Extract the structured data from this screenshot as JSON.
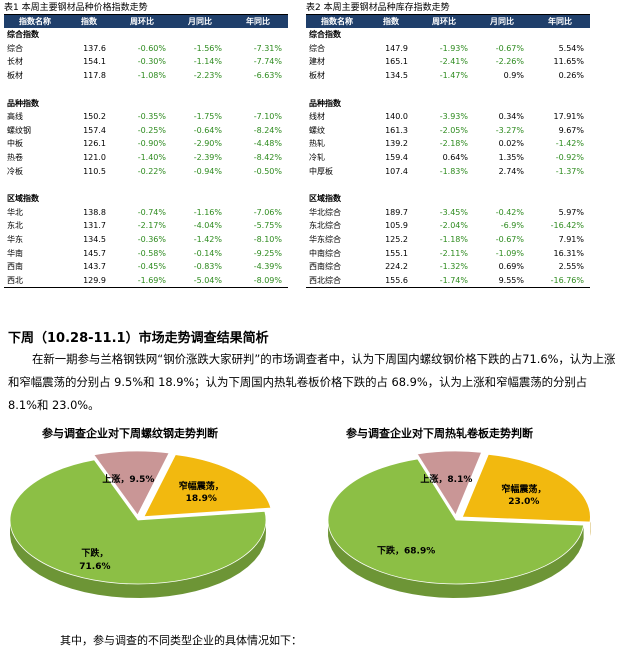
{
  "table1": {
    "title": "表1  本周主要钢材品种价格指数走势",
    "headers": [
      "指数名称",
      "指数",
      "周环比",
      "月同比",
      "年同比"
    ],
    "groups": [
      {
        "name": "综合指数",
        "rows": [
          [
            "综合",
            "137.6",
            "-0.60%",
            "-1.56%",
            "-7.31%"
          ],
          [
            "长材",
            "154.1",
            "-0.30%",
            "-1.14%",
            "-7.74%"
          ],
          [
            "板材",
            "117.8",
            "-1.08%",
            "-2.23%",
            "-6.63%"
          ]
        ]
      },
      {
        "name": "品种指数",
        "rows": [
          [
            "高线",
            "150.2",
            "-0.35%",
            "-1.75%",
            "-7.10%"
          ],
          [
            "螺纹钢",
            "157.4",
            "-0.25%",
            "-0.64%",
            "-8.24%"
          ],
          [
            "中板",
            "126.1",
            "-0.90%",
            "-2.90%",
            "-4.48%"
          ],
          [
            "热卷",
            "121.0",
            "-1.40%",
            "-2.39%",
            "-8.42%"
          ],
          [
            "冷板",
            "110.5",
            "-0.22%",
            "-0.94%",
            "-0.50%"
          ]
        ]
      },
      {
        "name": "区域指数",
        "rows": [
          [
            "华北",
            "138.8",
            "-0.74%",
            "-1.16%",
            "-7.06%"
          ],
          [
            "东北",
            "131.7",
            "-2.17%",
            "-4.04%",
            "-5.75%"
          ],
          [
            "华东",
            "134.5",
            "-0.36%",
            "-1.42%",
            "-8.10%"
          ],
          [
            "华南",
            "145.7",
            "-0.58%",
            "-0.14%",
            "-9.25%"
          ],
          [
            "西南",
            "143.7",
            "-0.45%",
            "-0.83%",
            "-4.39%"
          ],
          [
            "西北",
            "129.9",
            "-1.69%",
            "-5.04%",
            "-8.09%"
          ]
        ]
      }
    ]
  },
  "table2": {
    "title": "表2  本周主要钢材品种库存指数走势",
    "headers": [
      "指数名称",
      "指数",
      "周环比",
      "月同比",
      "年同比"
    ],
    "groups": [
      {
        "name": "综合指数",
        "rows": [
          [
            "综合",
            "147.9",
            "-1.93%",
            "-0.67%",
            "5.54%"
          ],
          [
            "建材",
            "165.1",
            "-2.41%",
            "-2.26%",
            "11.65%"
          ],
          [
            "板材",
            "134.5",
            "-1.47%",
            "0.9%",
            "0.26%"
          ]
        ]
      },
      {
        "name": "品种指数",
        "rows": [
          [
            "线材",
            "140.0",
            "-3.93%",
            "0.34%",
            "17.91%"
          ],
          [
            "螺纹",
            "161.3",
            "-2.05%",
            "-3.27%",
            "9.67%"
          ],
          [
            "热轧",
            "139.2",
            "-2.18%",
            "0.02%",
            "-1.42%"
          ],
          [
            "冷轧",
            "159.4",
            "0.64%",
            "1.35%",
            "-0.92%"
          ],
          [
            "中厚板",
            "107.4",
            "-1.83%",
            "2.74%",
            "-1.37%"
          ]
        ]
      },
      {
        "name": "区域指数",
        "rows": [
          [
            "华北综合",
            "189.7",
            "-3.45%",
            "-0.42%",
            "5.97%"
          ],
          [
            "东北综合",
            "105.9",
            "-2.04%",
            "-6.9%",
            "-16.42%"
          ],
          [
            "华东综合",
            "125.2",
            "-1.18%",
            "-0.67%",
            "7.91%"
          ],
          [
            "中南综合",
            "155.1",
            "-2.11%",
            "-1.09%",
            "16.31%"
          ],
          [
            "西南综合",
            "224.2",
            "-1.32%",
            "0.69%",
            "2.55%"
          ],
          [
            "西北综合",
            "155.6",
            "-1.74%",
            "9.55%",
            "-16.76%"
          ]
        ]
      }
    ]
  },
  "section": {
    "heading": "下周（10.28-11.1）市场走势调查结果简析",
    "paragraph": "在新一期参与兰格钢铁网“钢价涨跌大家研判”的市场调查者中，认为下周国内螺纹钢价格下跌的占71.6%，认为上涨和窄幅震荡的分别占 9.5%和 18.9%；认为下周国内热轧卷板价格下跌的占 68.9%，认为上涨和窄幅震荡的分别占 8.1%和 23.0%。",
    "footer": "其中，参与调查的不同类型企业的具体情况如下："
  },
  "colors": {
    "header_bg": "#1f3f6b",
    "negative": "#2e8b1f",
    "slice_fall": "#8cbf45",
    "slice_rise": "#c99696",
    "slice_range": "#f2b90f"
  },
  "chart_data": [
    {
      "type": "pie",
      "title": "参与调查企业对下周螺纹钢走势判断",
      "slices": [
        {
          "label": "上涨",
          "value": 9.5,
          "text": "上涨，9.5%"
        },
        {
          "label": "窄幅震荡",
          "value": 18.9,
          "text1": "窄幅震荡，",
          "text2": "18.9%"
        },
        {
          "label": "下跌",
          "value": 71.6,
          "text1": "下跌，",
          "text2": "71.6%"
        }
      ]
    },
    {
      "type": "pie",
      "title": "参与调查企业对下周热轧卷板走势判断",
      "slices": [
        {
          "label": "上涨",
          "value": 8.1,
          "text": "上涨，8.1%"
        },
        {
          "label": "窄幅震荡",
          "value": 23.0,
          "text1": "窄幅震荡，",
          "text2": "23.0%"
        },
        {
          "label": "下跌",
          "value": 68.9,
          "text1": "下跌，68.9%",
          "text2": ""
        }
      ]
    }
  ]
}
